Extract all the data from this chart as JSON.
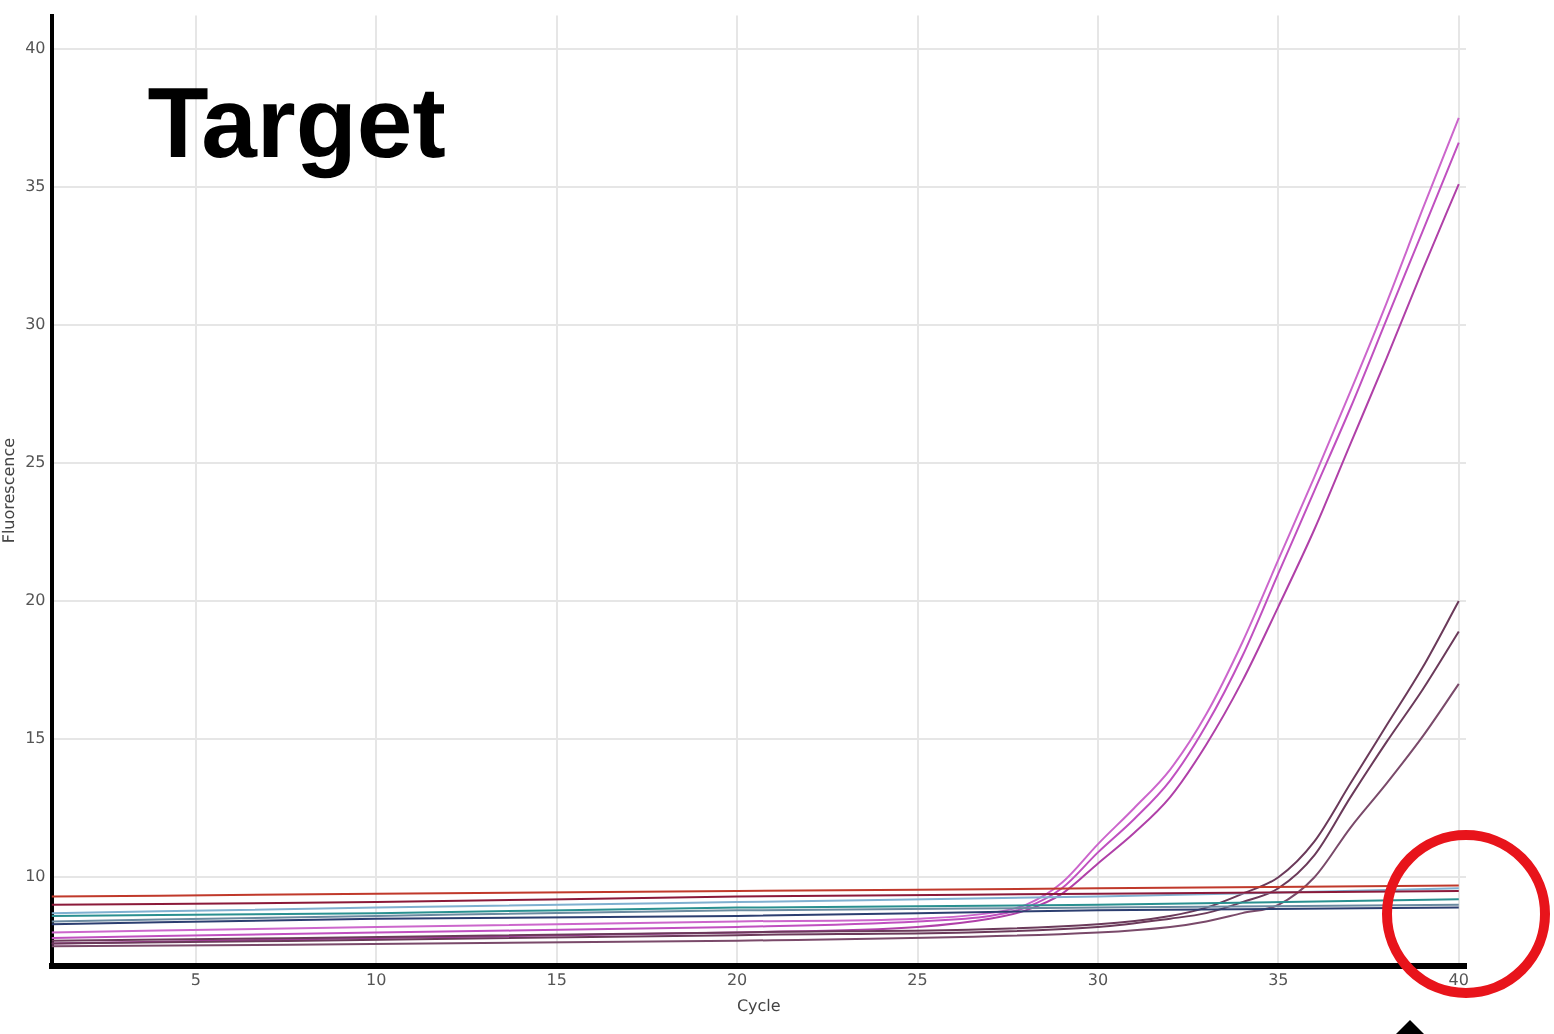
{
  "chart_data": {
    "type": "line",
    "xlabel": "Cycle",
    "ylabel": "Fluorescence",
    "annotations": [
      "Target"
    ],
    "xlim": [
      1,
      40.2
    ],
    "ylim": [
      6.8,
      41.2
    ],
    "xticks": [
      5,
      10,
      15,
      20,
      25,
      30,
      35,
      40
    ],
    "yticks": [
      10,
      15,
      20,
      25,
      30,
      35,
      40
    ],
    "grid": true,
    "legend": false,
    "marker": "none",
    "line_style": "solid",
    "series": [
      {
        "color": "#c0392b",
        "x": [
          1,
          10,
          20,
          30,
          40
        ],
        "values": [
          9.3,
          9.4,
          9.5,
          9.6,
          9.7
        ]
      },
      {
        "color": "#8b1a3a",
        "x": [
          1,
          10,
          20,
          30,
          40
        ],
        "values": [
          9.0,
          9.1,
          9.3,
          9.4,
          9.5
        ]
      },
      {
        "color": "#7fb0d0",
        "x": [
          1,
          10,
          20,
          30,
          40
        ],
        "values": [
          8.7,
          8.9,
          9.1,
          9.3,
          9.6
        ]
      },
      {
        "color": "#2a9090",
        "x": [
          1,
          10,
          20,
          30,
          40
        ],
        "values": [
          8.6,
          8.7,
          8.9,
          9.0,
          9.2
        ]
      },
      {
        "color": "#6a8aa0",
        "x": [
          1,
          10,
          20,
          30,
          40
        ],
        "values": [
          8.4,
          8.6,
          8.8,
          8.9,
          9.0
        ]
      },
      {
        "color": "#2c3e70",
        "x": [
          1,
          10,
          20,
          30,
          40
        ],
        "values": [
          8.3,
          8.5,
          8.6,
          8.8,
          8.9
        ]
      },
      {
        "color": "#6b3a5a",
        "x": [
          1,
          20,
          30,
          32,
          33,
          34,
          35,
          36,
          37,
          38,
          39,
          40
        ],
        "values": [
          7.7,
          8.0,
          8.3,
          8.6,
          8.9,
          9.4,
          10.0,
          11.3,
          13.4,
          15.5,
          17.6,
          20.0
        ]
      },
      {
        "color": "#6b3a5a",
        "x": [
          1,
          20,
          30,
          32,
          33,
          34,
          35,
          36,
          37,
          38,
          39,
          40
        ],
        "values": [
          7.6,
          7.9,
          8.2,
          8.5,
          8.7,
          9.1,
          9.6,
          10.8,
          12.9,
          14.9,
          16.8,
          18.9
        ]
      },
      {
        "color": "#7a4a6a",
        "x": [
          1,
          20,
          30,
          32,
          33,
          34,
          35,
          36,
          37,
          38,
          39,
          40
        ],
        "values": [
          7.5,
          7.7,
          8.0,
          8.2,
          8.4,
          8.7,
          9.0,
          10.0,
          11.8,
          13.4,
          15.1,
          17.0
        ]
      },
      {
        "color": "#cc66cc",
        "x": [
          1,
          10,
          20,
          25,
          27,
          28,
          29,
          30,
          31,
          32,
          33,
          34,
          35,
          36,
          37,
          38,
          39,
          40
        ],
        "values": [
          8.0,
          8.2,
          8.4,
          8.5,
          8.7,
          9.0,
          9.8,
          11.2,
          12.5,
          13.9,
          15.9,
          18.5,
          21.5,
          24.5,
          27.6,
          30.8,
          34.2,
          37.5
        ]
      },
      {
        "color": "#c050c0",
        "x": [
          1,
          10,
          20,
          25,
          27,
          28,
          29,
          30,
          31,
          32,
          33,
          34,
          35,
          36,
          37,
          38,
          39,
          40
        ],
        "values": [
          7.8,
          8.0,
          8.2,
          8.4,
          8.6,
          8.9,
          9.6,
          10.9,
          12.1,
          13.5,
          15.5,
          18.0,
          21.0,
          24.0,
          27.0,
          30.2,
          33.4,
          36.6
        ]
      },
      {
        "color": "#b040a8",
        "x": [
          1,
          10,
          20,
          25,
          27,
          28,
          29,
          30,
          31,
          32,
          33,
          34,
          35,
          36,
          37,
          38,
          39,
          40
        ],
        "values": [
          7.6,
          7.8,
          8.0,
          8.2,
          8.5,
          8.8,
          9.4,
          10.5,
          11.6,
          12.9,
          14.8,
          17.1,
          19.8,
          22.6,
          25.7,
          28.8,
          32.0,
          35.1
        ]
      }
    ]
  }
}
